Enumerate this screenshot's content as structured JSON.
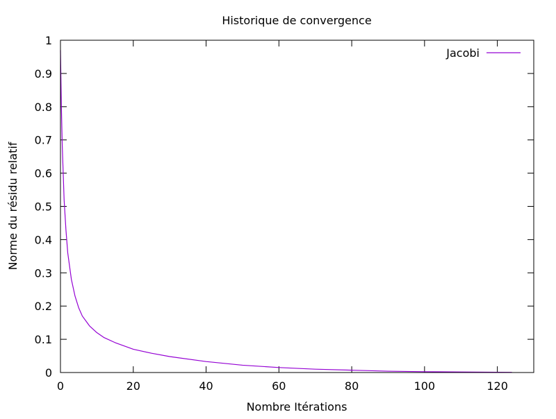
{
  "chart_data": {
    "type": "line",
    "title": "Historique de convergence",
    "xlabel": "Nombre Itérations",
    "ylabel": "Norme du résidu relatif",
    "xlim": [
      0,
      130
    ],
    "ylim": [
      0,
      1
    ],
    "xticks": [
      {
        "value": 0,
        "label": "0"
      },
      {
        "value": 20,
        "label": "20"
      },
      {
        "value": 40,
        "label": "40"
      },
      {
        "value": 60,
        "label": "60"
      },
      {
        "value": 80,
        "label": "80"
      },
      {
        "value": 100,
        "label": "100"
      },
      {
        "value": 120,
        "label": "120"
      }
    ],
    "yticks": [
      {
        "value": 0,
        "label": "0"
      },
      {
        "value": 0.1,
        "label": "0.1"
      },
      {
        "value": 0.2,
        "label": "0.2"
      },
      {
        "value": 0.3,
        "label": "0.3"
      },
      {
        "value": 0.4,
        "label": "0.4"
      },
      {
        "value": 0.5,
        "label": "0.5"
      },
      {
        "value": 0.6,
        "label": "0.6"
      },
      {
        "value": 0.7,
        "label": "0.7"
      },
      {
        "value": 0.8,
        "label": "0.8"
      },
      {
        "value": 0.9,
        "label": "0.9"
      },
      {
        "value": 1,
        "label": "1"
      }
    ],
    "grid": false,
    "legend_position": "top-right",
    "series": [
      {
        "name": "Jacobi",
        "color": "#9400d3",
        "x": [
          0,
          0.25,
          0.5,
          1,
          1.5,
          2,
          3,
          4,
          5,
          6,
          8,
          10,
          12,
          15,
          20,
          25,
          30,
          40,
          50,
          60,
          70,
          80,
          90,
          100,
          110,
          120,
          124
        ],
        "y": [
          0.97,
          0.8,
          0.68,
          0.52,
          0.43,
          0.36,
          0.28,
          0.23,
          0.195,
          0.17,
          0.14,
          0.12,
          0.105,
          0.09,
          0.07,
          0.058,
          0.048,
          0.033,
          0.022,
          0.015,
          0.01,
          0.007,
          0.004,
          0.0025,
          0.0015,
          0.0008,
          0.0006
        ]
      }
    ]
  }
}
